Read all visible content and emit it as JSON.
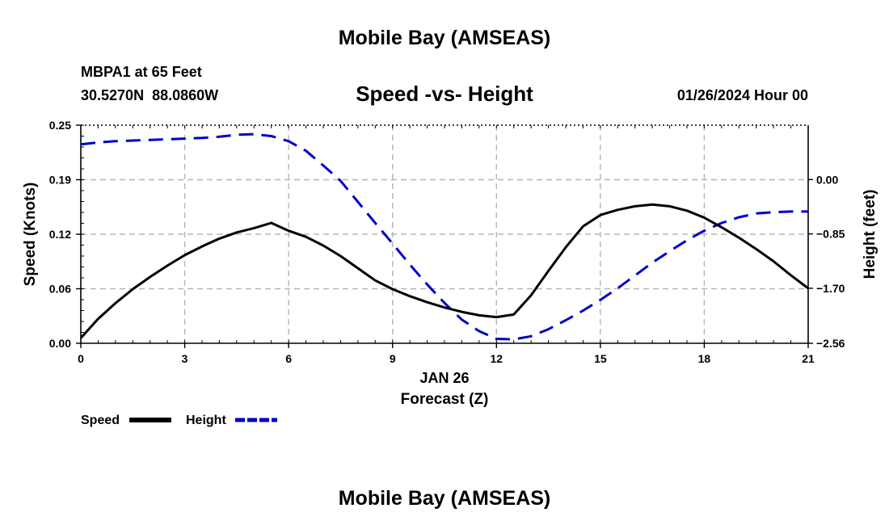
{
  "page": {
    "main_title": "Mobile Bay (AMSEAS)",
    "station_line1": "MBPA1 at 65 Feet",
    "station_line2": "30.5270N  88.0860W",
    "datetime": "01/26/2024 Hour 00",
    "footer_title": "Mobile Bay (AMSEAS)"
  },
  "chart_data": {
    "type": "line",
    "title": "Speed -vs- Height",
    "xlabel": "Forecast (Z)",
    "xlabel_date": "JAN 26",
    "ylabel_left": "Speed (Knots)",
    "ylabel_right": "Height (feet)",
    "xlim": [
      0,
      21
    ],
    "x_ticks": [
      0,
      3,
      6,
      9,
      12,
      15,
      18,
      21
    ],
    "x_tick_labels": [
      "0",
      "3",
      "6",
      "9",
      "12",
      "15",
      "18",
      "21"
    ],
    "ylim_left": [
      0,
      0.25
    ],
    "y_ticks_left": [
      0,
      0.0625,
      0.125,
      0.1875,
      0.25
    ],
    "y_tick_labels_left": [
      "0.00",
      "0.06",
      "0.12",
      "0.19",
      "0.25"
    ],
    "ylim_right": [
      -2.56,
      0.85
    ],
    "y_ticks_right": [
      -2.56,
      -1.7,
      -0.85,
      0.0
    ],
    "y_tick_labels_right": [
      "−2.56",
      "−1.70",
      "−0.85",
      "0.00"
    ],
    "grid": true,
    "legend": "bottom-left",
    "series": [
      {
        "name": "Speed",
        "axis": "left",
        "color": "#000000",
        "dash": "solid",
        "x": [
          0,
          0.5,
          1,
          1.5,
          2,
          2.5,
          3,
          3.5,
          4,
          4.5,
          5,
          5.5,
          6,
          6.5,
          7,
          7.5,
          8,
          8.5,
          9,
          9.5,
          10,
          10.5,
          11,
          11.5,
          12,
          12.5,
          13,
          13.5,
          14,
          14.5,
          15,
          15.5,
          16,
          16.5,
          17,
          17.5,
          18,
          18.5,
          19,
          19.5,
          20,
          20.5,
          21
        ],
        "y": [
          0.006,
          0.028,
          0.046,
          0.062,
          0.076,
          0.089,
          0.101,
          0.111,
          0.12,
          0.127,
          0.132,
          0.138,
          0.129,
          0.122,
          0.112,
          0.1,
          0.086,
          0.072,
          0.062,
          0.054,
          0.047,
          0.041,
          0.036,
          0.032,
          0.03,
          0.033,
          0.055,
          0.083,
          0.11,
          0.134,
          0.147,
          0.153,
          0.157,
          0.159,
          0.157,
          0.152,
          0.144,
          0.133,
          0.121,
          0.108,
          0.094,
          0.078,
          0.063
        ]
      },
      {
        "name": "Height",
        "axis": "right",
        "color": "#0000cc",
        "dash": "dashed",
        "x": [
          0,
          0.5,
          1,
          1.5,
          2,
          2.5,
          3,
          3.5,
          4,
          4.5,
          5,
          5.5,
          6,
          6.5,
          7,
          7.5,
          8,
          8.5,
          9,
          9.5,
          10,
          10.5,
          11,
          11.5,
          12,
          12.5,
          13,
          13.5,
          14,
          14.5,
          15,
          15.5,
          16,
          16.5,
          17,
          17.5,
          18,
          18.5,
          19,
          19.5,
          20,
          20.5,
          21
        ],
        "y": [
          0.55,
          0.58,
          0.6,
          0.61,
          0.62,
          0.63,
          0.64,
          0.65,
          0.67,
          0.7,
          0.71,
          0.68,
          0.6,
          0.45,
          0.22,
          -0.02,
          -0.35,
          -0.68,
          -1.0,
          -1.33,
          -1.64,
          -1.93,
          -2.19,
          -2.37,
          -2.49,
          -2.5,
          -2.45,
          -2.34,
          -2.2,
          -2.05,
          -1.88,
          -1.7,
          -1.5,
          -1.3,
          -1.12,
          -0.95,
          -0.8,
          -0.68,
          -0.59,
          -0.53,
          -0.51,
          -0.5,
          -0.5
        ]
      }
    ]
  }
}
